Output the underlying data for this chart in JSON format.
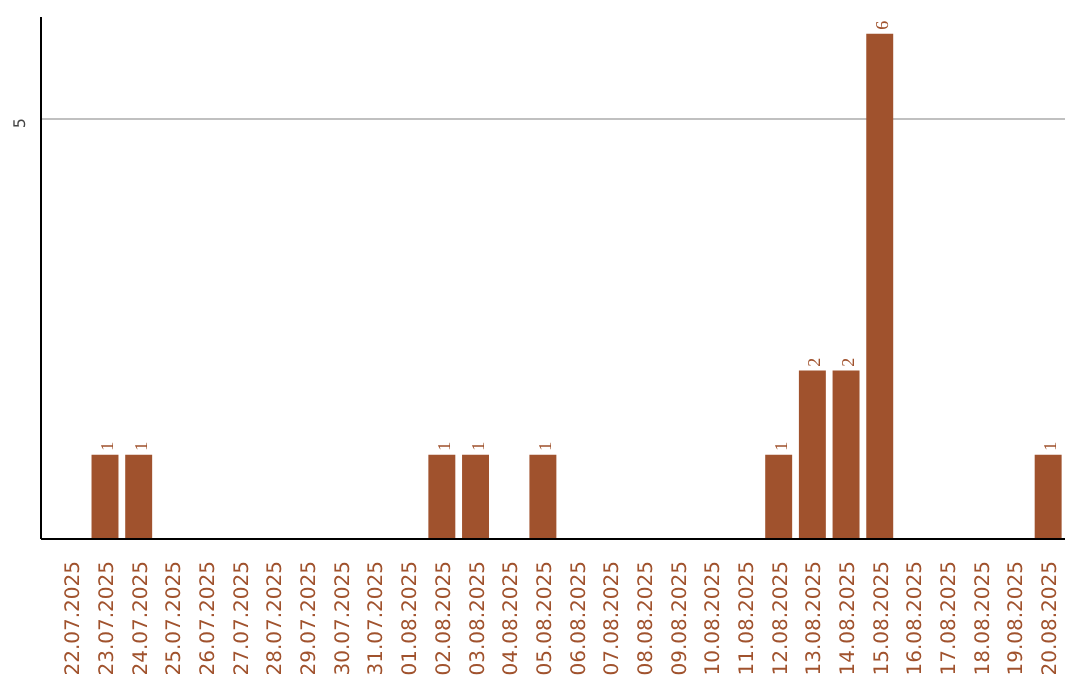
{
  "chart_data": {
    "type": "bar",
    "categories": [
      "22.07.2025",
      "23.07.2025",
      "24.07.2025",
      "25.07.2025",
      "26.07.2025",
      "27.07.2025",
      "28.07.2025",
      "29.07.2025",
      "30.07.2025",
      "31.07.2025",
      "01.08.2025",
      "02.08.2025",
      "03.08.2025",
      "04.08.2025",
      "05.08.2025",
      "06.08.2025",
      "07.08.2025",
      "08.08.2025",
      "09.08.2025",
      "10.08.2025",
      "11.08.2025",
      "12.08.2025",
      "13.08.2025",
      "14.08.2025",
      "15.08.2025",
      "16.08.2025",
      "17.08.2025",
      "18.08.2025",
      "19.08.2025",
      "20.08.2025"
    ],
    "values": [
      0,
      1,
      1,
      0,
      0,
      0,
      0,
      0,
      0,
      0,
      0,
      1,
      1,
      0,
      1,
      0,
      0,
      0,
      0,
      0,
      0,
      1,
      2,
      2,
      6,
      0,
      0,
      0,
      0,
      1
    ],
    "value_labels": [
      null,
      "1",
      "1",
      null,
      null,
      null,
      null,
      null,
      null,
      null,
      null,
      "1",
      "1",
      null,
      "1",
      null,
      null,
      null,
      null,
      null,
      null,
      "1",
      "2",
      "2",
      "6",
      null,
      null,
      null,
      null,
      "1"
    ],
    "color": "#a0522d",
    "ylim": [
      0,
      6.2
    ],
    "yticks": [
      5
    ],
    "grid": "y"
  }
}
